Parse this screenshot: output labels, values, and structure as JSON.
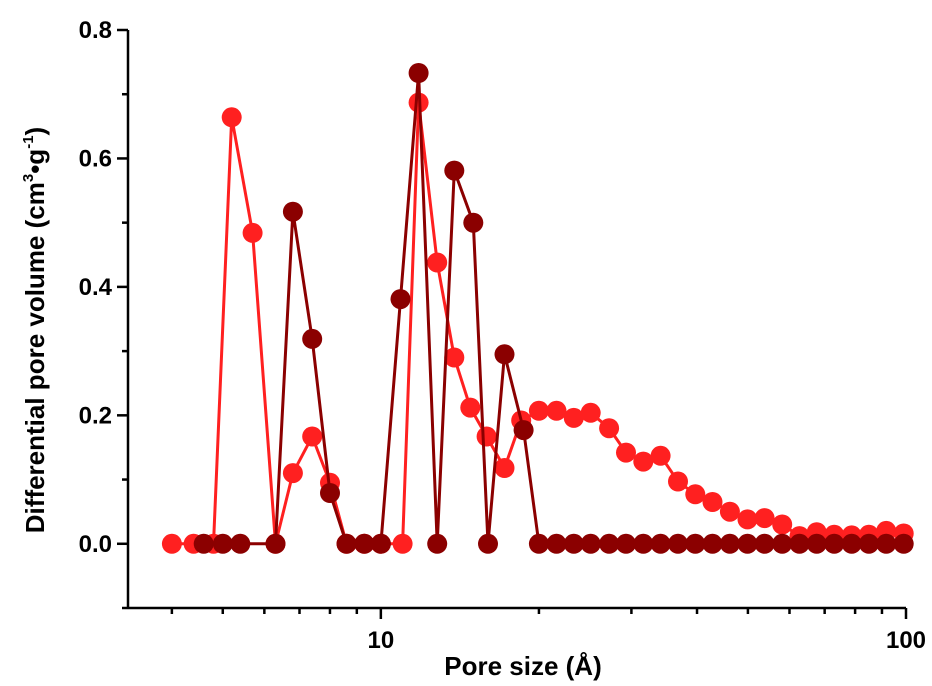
{
  "chart_data": {
    "type": "scatter",
    "xscale": "log",
    "xlim": [
      3.3,
      100
    ],
    "ylim": [
      -0.1,
      0.8
    ],
    "x_ticks": [
      10,
      100
    ],
    "x_tick_labels": [
      "10",
      "100"
    ],
    "y_ticks": [
      0.0,
      0.2,
      0.4,
      0.6,
      0.8
    ],
    "y_tick_labels": [
      "0.0",
      "0.2",
      "0.4",
      "0.6",
      "0.8"
    ],
    "xlabel": "Pore size (Å)",
    "ylabel_main": "Differential pore volume (cm",
    "ylabel_sup1": "3",
    "ylabel_dot": "•",
    "ylabel_g": "g",
    "ylabel_sup2": "-1",
    "ylabel_close": ")",
    "grid": false,
    "series": [
      {
        "color": "#ff2020",
        "points": [
          [
            4.0,
            0.0
          ],
          [
            4.4,
            0.0
          ],
          [
            4.8,
            0.0
          ],
          [
            5.2,
            0.664
          ],
          [
            5.7,
            0.484
          ],
          [
            6.3,
            0.0
          ],
          [
            6.8,
            0.11
          ],
          [
            7.4,
            0.167
          ],
          [
            8.0,
            0.095
          ],
          [
            8.6,
            0.0
          ],
          [
            9.3,
            0.0
          ],
          [
            10.0,
            0.0
          ],
          [
            11.0,
            0.0
          ],
          [
            11.8,
            0.687
          ],
          [
            12.8,
            0.438
          ],
          [
            13.8,
            0.29
          ],
          [
            14.8,
            0.212
          ],
          [
            15.9,
            0.167
          ],
          [
            17.2,
            0.118
          ],
          [
            18.5,
            0.192
          ],
          [
            20.0,
            0.207
          ],
          [
            21.6,
            0.207
          ],
          [
            23.3,
            0.196
          ],
          [
            25.1,
            0.204
          ],
          [
            27.2,
            0.18
          ],
          [
            29.3,
            0.142
          ],
          [
            31.6,
            0.128
          ],
          [
            34.1,
            0.137
          ],
          [
            36.8,
            0.097
          ],
          [
            39.7,
            0.077
          ],
          [
            42.8,
            0.065
          ],
          [
            46.2,
            0.05
          ],
          [
            49.9,
            0.038
          ],
          [
            53.8,
            0.04
          ],
          [
            58.1,
            0.03
          ],
          [
            62.7,
            0.012
          ],
          [
            67.6,
            0.018
          ],
          [
            73.0,
            0.014
          ],
          [
            78.8,
            0.013
          ],
          [
            85.0,
            0.014
          ],
          [
            91.7,
            0.02
          ],
          [
            99.0,
            0.016
          ]
        ]
      },
      {
        "color": "#8b0000",
        "points": [
          [
            4.6,
            0.0
          ],
          [
            5.0,
            0.0
          ],
          [
            5.4,
            0.0
          ],
          [
            6.3,
            0.0
          ],
          [
            6.8,
            0.517
          ],
          [
            7.4,
            0.319
          ],
          [
            8.0,
            0.079
          ],
          [
            8.6,
            0.0
          ],
          [
            9.3,
            0.0
          ],
          [
            10.0,
            0.0
          ],
          [
            10.9,
            0.381
          ],
          [
            11.8,
            0.733
          ],
          [
            12.8,
            0.0
          ],
          [
            13.8,
            0.581
          ],
          [
            15.0,
            0.5
          ],
          [
            16.0,
            0.0
          ],
          [
            17.2,
            0.295
          ],
          [
            18.7,
            0.177
          ],
          [
            20.0,
            0.0
          ],
          [
            21.6,
            0.0
          ],
          [
            23.3,
            0.0
          ],
          [
            25.1,
            0.0
          ],
          [
            27.2,
            0.0
          ],
          [
            29.3,
            0.0
          ],
          [
            31.6,
            0.0
          ],
          [
            34.1,
            0.0
          ],
          [
            36.8,
            0.0
          ],
          [
            39.7,
            0.0
          ],
          [
            42.8,
            0.0
          ],
          [
            46.2,
            0.0
          ],
          [
            49.9,
            0.0
          ],
          [
            53.8,
            0.0
          ],
          [
            58.1,
            0.0
          ],
          [
            62.7,
            0.0
          ],
          [
            67.6,
            0.0
          ],
          [
            73.0,
            0.0
          ],
          [
            78.8,
            0.0
          ],
          [
            85.0,
            0.0
          ],
          [
            91.7,
            0.0
          ],
          [
            99.0,
            0.0
          ]
        ]
      }
    ]
  }
}
